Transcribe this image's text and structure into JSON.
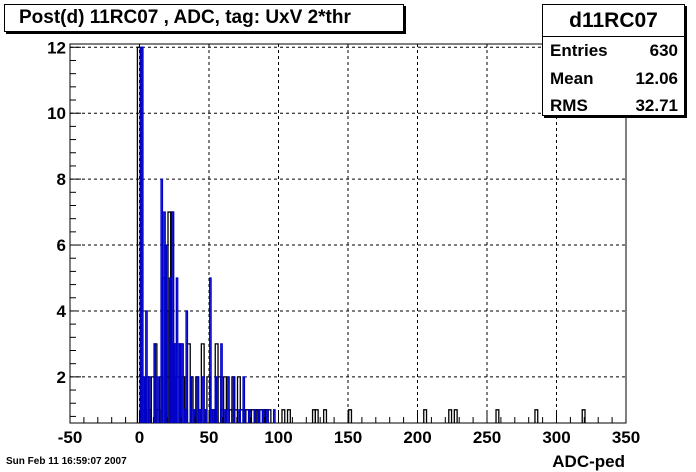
{
  "title": "Post(d) 11RC07 , ADC, tag: UxV 2*thr",
  "stats": {
    "name": "d11RC07",
    "rows": [
      {
        "label": "Entries",
        "value": "630"
      },
      {
        "label": "Mean",
        "value": "12.06"
      },
      {
        "label": "RMS",
        "value": "32.71"
      }
    ]
  },
  "footer": {
    "date": "Sun Feb 11 16:59:07 2007"
  },
  "chart_data": {
    "type": "bar",
    "xlabel": "ADC-ped",
    "ylabel": "",
    "xlim": [
      -50,
      350
    ],
    "ylim": [
      0.6,
      12.1
    ],
    "xticks": [
      -50,
      0,
      50,
      100,
      150,
      200,
      250,
      300,
      350
    ],
    "yticks": [
      2,
      4,
      6,
      8,
      10,
      12
    ],
    "grid": true,
    "colors": {
      "histogram": "#000000",
      "overlay": "#0000cc"
    },
    "series": [
      {
        "key": "histogram",
        "bins": [
          [
            -1.5,
            0.5,
            12
          ],
          [
            0.5,
            2.5,
            2
          ],
          [
            2.5,
            4.5,
            1
          ],
          [
            4.5,
            6.5,
            2
          ],
          [
            6.5,
            8.5,
            1
          ],
          [
            8.5,
            10.5,
            2
          ],
          [
            10.5,
            12.5,
            3
          ],
          [
            12.5,
            14.5,
            1
          ],
          [
            14.5,
            16.5,
            2
          ],
          [
            16.5,
            18.5,
            5
          ],
          [
            18.5,
            20.5,
            4
          ],
          [
            20.5,
            22.5,
            7
          ],
          [
            22.5,
            24.5,
            7
          ],
          [
            24.5,
            26.5,
            3
          ],
          [
            26.5,
            28.5,
            2
          ],
          [
            28.5,
            30.5,
            3
          ],
          [
            30.5,
            32.5,
            2
          ],
          [
            32.5,
            34.5,
            1
          ],
          [
            34.5,
            36.5,
            3
          ],
          [
            36.5,
            38.5,
            2
          ],
          [
            38.5,
            40.5,
            1
          ],
          [
            40.5,
            42.5,
            2
          ],
          [
            42.5,
            44.5,
            1
          ],
          [
            44.5,
            46.5,
            3
          ],
          [
            46.5,
            48.5,
            1
          ],
          [
            48.5,
            50.5,
            2
          ],
          [
            50.5,
            52.5,
            1
          ],
          [
            52.5,
            54.5,
            1
          ],
          [
            54.5,
            56.5,
            3
          ],
          [
            56.5,
            58.5,
            2
          ],
          [
            58.5,
            60.5,
            1
          ],
          [
            60.5,
            62.5,
            2
          ],
          [
            62.5,
            64.5,
            1
          ],
          [
            64.5,
            66.5,
            1
          ],
          [
            66.5,
            68.5,
            2
          ],
          [
            68.5,
            70.5,
            1
          ],
          [
            70.5,
            72.5,
            2
          ],
          [
            72.5,
            74.5,
            1
          ],
          [
            74.5,
            76.5,
            1
          ],
          [
            76.5,
            78.5,
            1
          ],
          [
            78.5,
            80.5,
            1
          ],
          [
            80.5,
            82.5,
            1
          ],
          [
            82.5,
            84.5,
            1
          ],
          [
            84.5,
            86.5,
            1
          ],
          [
            86.5,
            88.5,
            1
          ],
          [
            88.5,
            90.5,
            1
          ],
          [
            90.5,
            92.5,
            1
          ],
          [
            92.5,
            94.5,
            1
          ],
          [
            102.5,
            104.5,
            1
          ],
          [
            106.5,
            108.5,
            1
          ],
          [
            124.5,
            126.5,
            1
          ],
          [
            126.5,
            128.5,
            1
          ],
          [
            132.5,
            134.5,
            1
          ],
          [
            150.5,
            152.5,
            1
          ],
          [
            204.5,
            206.5,
            1
          ],
          [
            222.5,
            224.5,
            1
          ],
          [
            226.5,
            228.5,
            1
          ],
          [
            256.5,
            258.5,
            1
          ],
          [
            284.5,
            286.5,
            1
          ],
          [
            318.5,
            320.5,
            1
          ]
        ]
      },
      {
        "key": "overlay",
        "bins": [
          [
            0.5,
            1.5,
            12
          ],
          [
            1.5,
            2.5,
            12
          ],
          [
            2.5,
            3.5,
            2
          ],
          [
            4.5,
            5.5,
            4
          ],
          [
            6.5,
            7.5,
            2
          ],
          [
            10.5,
            11.5,
            3
          ],
          [
            12.5,
            13.5,
            2
          ],
          [
            15.5,
            16.5,
            8
          ],
          [
            17.5,
            18.5,
            7
          ],
          [
            18.5,
            19.5,
            6
          ],
          [
            21.5,
            22.5,
            5
          ],
          [
            22.5,
            23.5,
            3
          ],
          [
            23.5,
            24.5,
            7
          ],
          [
            24.5,
            25.5,
            3
          ],
          [
            26.5,
            27.5,
            5
          ],
          [
            28.5,
            29.5,
            3
          ],
          [
            30.5,
            31.5,
            3
          ],
          [
            32.5,
            33.5,
            1
          ],
          [
            33.5,
            34.5,
            4
          ],
          [
            36.5,
            37.5,
            2
          ],
          [
            38.5,
            39.5,
            1
          ],
          [
            41.5,
            42.5,
            2
          ],
          [
            43.5,
            44.5,
            1
          ],
          [
            45.5,
            46.5,
            2
          ],
          [
            47.5,
            48.5,
            1
          ],
          [
            50.5,
            51.5,
            5
          ],
          [
            52.5,
            53.5,
            1
          ],
          [
            54.5,
            55.5,
            2
          ],
          [
            58.5,
            59.5,
            3
          ],
          [
            61.5,
            62.5,
            1
          ],
          [
            63.5,
            64.5,
            2
          ],
          [
            67.5,
            68.5,
            2
          ],
          [
            71.5,
            72.5,
            1
          ],
          [
            74.5,
            75.5,
            2
          ],
          [
            78.5,
            79.5,
            1
          ],
          [
            82.5,
            83.5,
            1
          ],
          [
            85.5,
            86.5,
            1
          ],
          [
            88.5,
            89.5,
            1
          ],
          [
            91.5,
            92.5,
            1
          ],
          [
            96.5,
            97.5,
            1
          ]
        ]
      }
    ]
  }
}
